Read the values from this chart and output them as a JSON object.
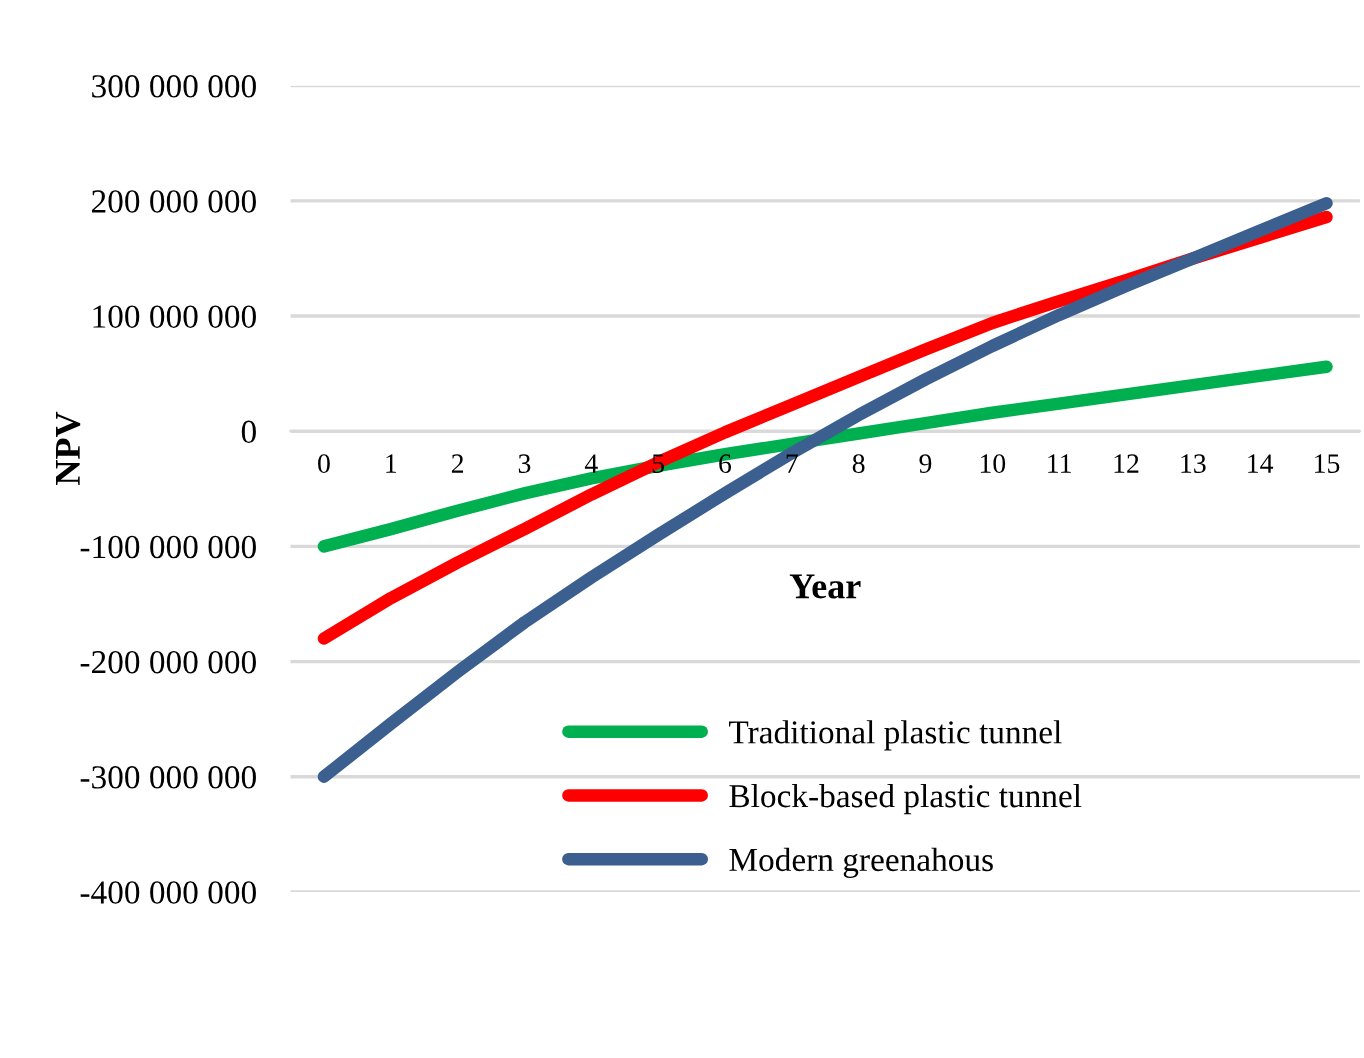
{
  "chart_data": {
    "type": "line",
    "xlabel": "Year",
    "ylabel": "NPV",
    "categories": [
      "0",
      "1",
      "2",
      "3",
      "4",
      "5",
      "6",
      "7",
      "8",
      "9",
      "10",
      "11",
      "12",
      "13",
      "14",
      "15"
    ],
    "series": [
      {
        "name": "Traditional plastic tunnel",
        "color": "#00b050",
        "values": [
          -100000000,
          -85000000,
          -69000000,
          -54000000,
          -41000000,
          -30000000,
          -20000000,
          -11000000,
          -2000000,
          7000000,
          16000000,
          24000000,
          32000000,
          40000000,
          48000000,
          56000000
        ]
      },
      {
        "name": "Block-based plastic tunnel",
        "color": "#ff0000",
        "values": [
          -180000000,
          -145000000,
          -114000000,
          -85000000,
          -55000000,
          -27000000,
          -1000000,
          23000000,
          47000000,
          71000000,
          94000000,
          113000000,
          131000000,
          150000000,
          168000000,
          186000000
        ]
      },
      {
        "name": "Modern greenahous",
        "color": "#3b5f8f",
        "values": [
          -300000000,
          -254000000,
          -209000000,
          -166000000,
          -127000000,
          -90000000,
          -54000000,
          -19000000,
          14000000,
          45000000,
          74000000,
          101000000,
          126000000,
          150000000,
          174000000,
          198000000
        ]
      }
    ],
    "ylim": [
      -400000000,
      300000000
    ],
    "yticks": [
      {
        "value": -400000000,
        "label": "-400 000 000"
      },
      {
        "value": -300000000,
        "label": "-300 000 000"
      },
      {
        "value": -200000000,
        "label": "-200 000 000"
      },
      {
        "value": -100000000,
        "label": "-100 000 000"
      },
      {
        "value": 0,
        "label": "0"
      },
      {
        "value": 100000000,
        "label": "100 000 000"
      },
      {
        "value": 200000000,
        "label": "200 000 000"
      },
      {
        "value": 300000000,
        "label": "300 000 000"
      }
    ],
    "grid": "y",
    "legend": "bottom",
    "marker": "none",
    "line_style": "solid"
  }
}
